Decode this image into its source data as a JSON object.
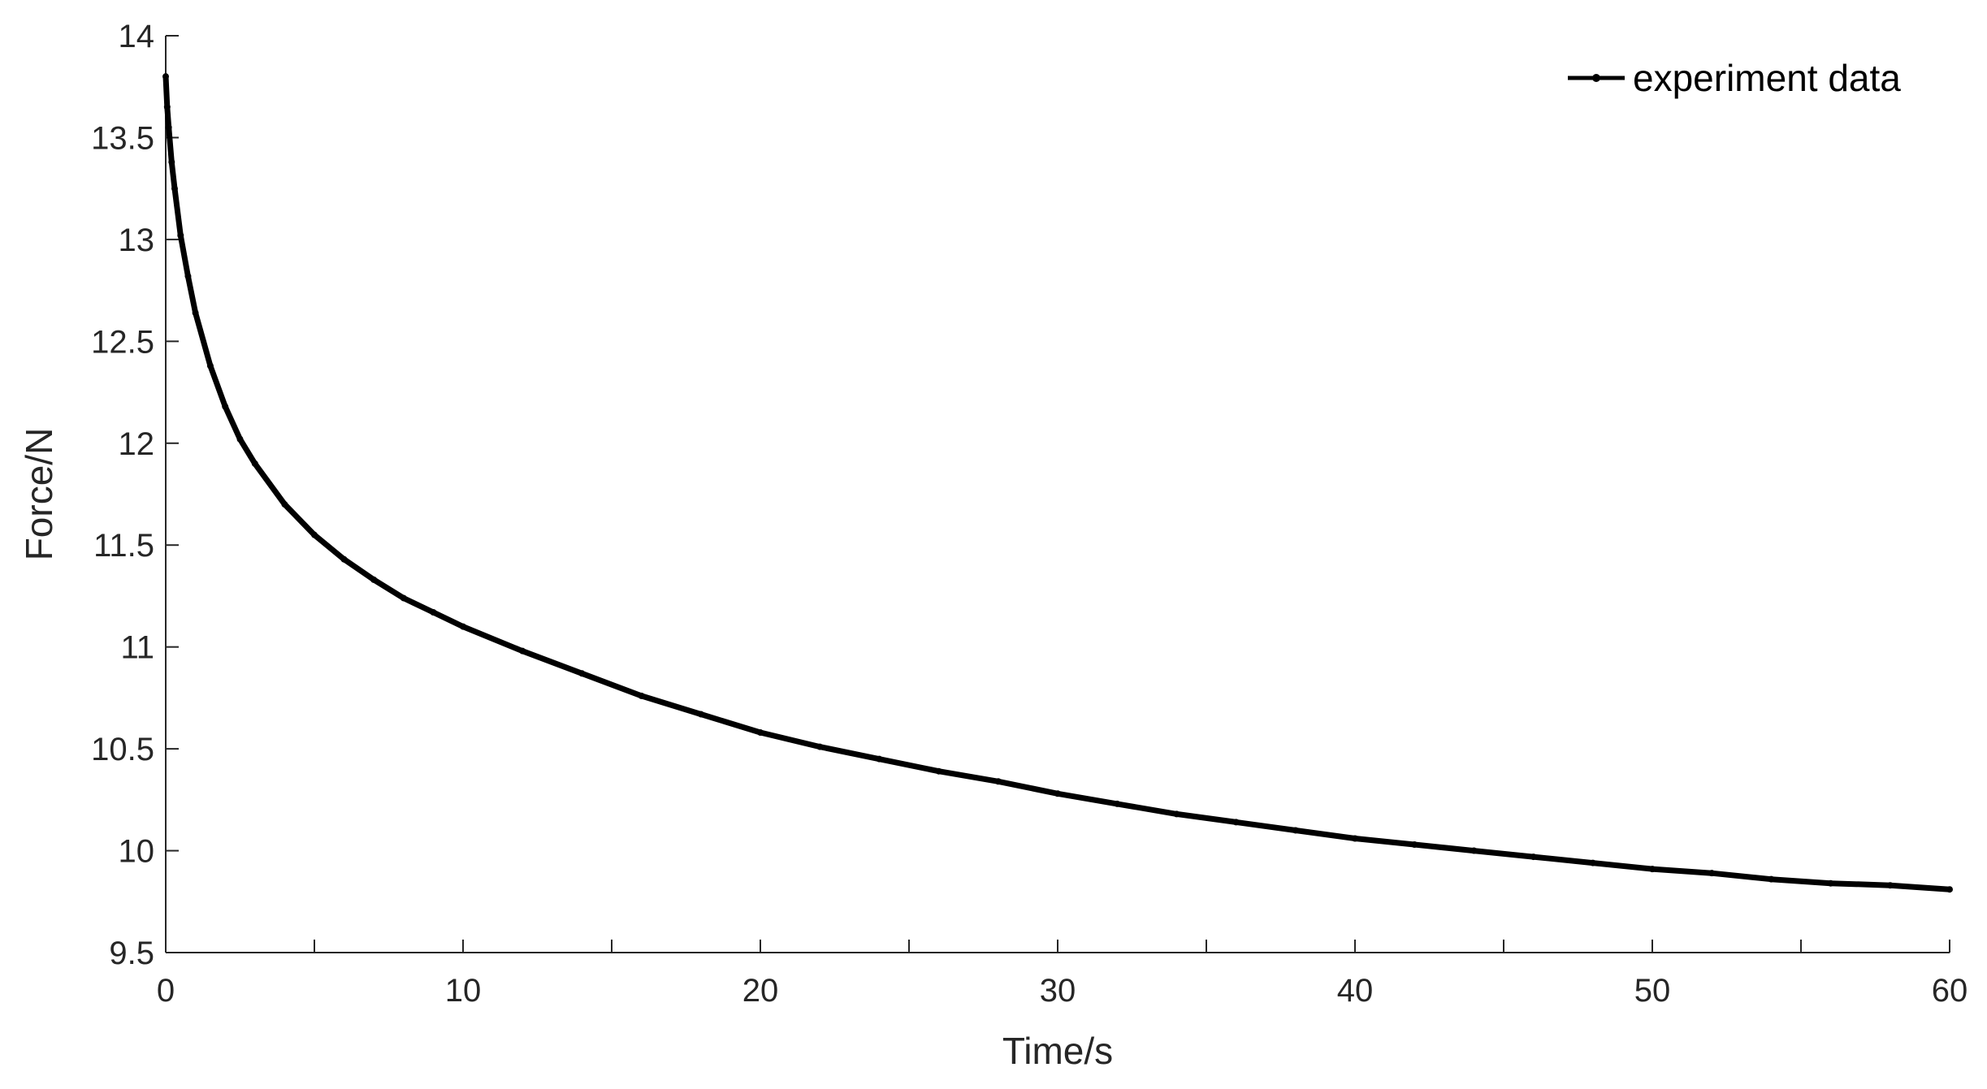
{
  "chart_data": {
    "type": "line",
    "title": "",
    "xlabel": "Time/s",
    "ylabel": "Force/N",
    "xlim": [
      0,
      60
    ],
    "ylim": [
      9.5,
      14
    ],
    "xticks": [
      0,
      10,
      20,
      30,
      40,
      50,
      60
    ],
    "yticks": [
      9.5,
      10,
      10.5,
      11,
      11.5,
      12,
      12.5,
      13,
      13.5,
      14
    ],
    "xtick_labels": [
      "0",
      "10",
      "20",
      "30",
      "40",
      "50",
      "60"
    ],
    "ytick_labels": [
      "9.5",
      "10",
      "10.5",
      "11",
      "11.5",
      "12",
      "12.5",
      "13",
      "13.5",
      "14"
    ],
    "grid": false,
    "legend_position": "top-right",
    "colors": {
      "series": "#000000",
      "axis": "#262626"
    },
    "series": [
      {
        "name": "experiment data",
        "marker": "dot",
        "x": [
          0,
          0.05,
          0.1,
          0.2,
          0.3,
          0.5,
          0.75,
          1,
          1.5,
          2,
          2.5,
          3,
          4,
          5,
          6,
          7,
          8,
          9,
          10,
          12,
          14,
          16,
          18,
          20,
          22,
          24,
          26,
          28,
          30,
          32,
          34,
          36,
          38,
          40,
          42,
          44,
          46,
          48,
          50,
          52,
          54,
          56,
          58,
          60
        ],
        "y": [
          13.8,
          13.65,
          13.55,
          13.38,
          13.25,
          13.02,
          12.82,
          12.64,
          12.38,
          12.18,
          12.02,
          11.9,
          11.7,
          11.55,
          11.43,
          11.33,
          11.24,
          11.17,
          11.1,
          10.98,
          10.87,
          10.76,
          10.67,
          10.58,
          10.51,
          10.45,
          10.39,
          10.34,
          10.28,
          10.23,
          10.18,
          10.14,
          10.1,
          10.06,
          10.03,
          10.0,
          9.97,
          9.94,
          9.91,
          9.89,
          9.86,
          9.84,
          9.83,
          9.81
        ]
      }
    ]
  }
}
